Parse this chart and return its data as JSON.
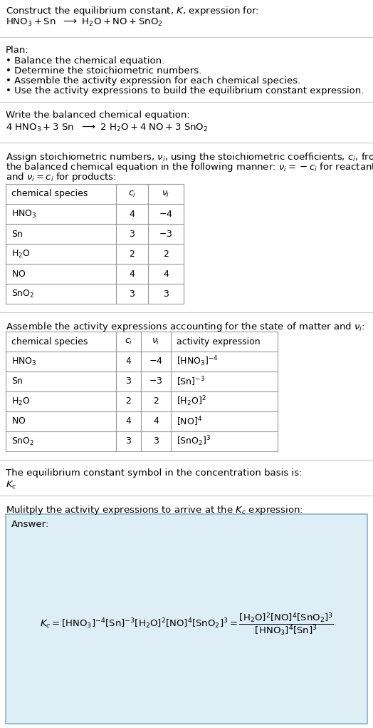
{
  "title_line1": "Construct the equilibrium constant, $K$, expression for:",
  "title_line2": "$\\mathrm{HNO_3 + Sn\\ \\ \\longrightarrow\\ H_2O + NO + SnO_2}$",
  "plan_header": "Plan:",
  "plan_items": [
    "• Balance the chemical equation.",
    "• Determine the stoichiometric numbers.",
    "• Assemble the activity expression for each chemical species.",
    "• Use the activity expressions to build the equilibrium constant expression."
  ],
  "balanced_header": "Write the balanced chemical equation:",
  "balanced_eq": "$4\\ \\mathrm{HNO_3 + 3\\ Sn\\ \\ \\longrightarrow\\ 2\\ H_2O + 4\\ NO + 3\\ SnO_2}$",
  "stoich_text": [
    "Assign stoichiometric numbers, $\\nu_i$, using the stoichiometric coefficients, $c_i$, from",
    "the balanced chemical equation in the following manner: $\\nu_i = -c_i$ for reactants",
    "and $\\nu_i = c_i$ for products:"
  ],
  "table1_cols": [
    "chemical species",
    "$c_i$",
    "$\\nu_i$"
  ],
  "table1_rows": [
    [
      "$\\mathrm{HNO_3}$",
      "4",
      "$-4$"
    ],
    [
      "$\\mathrm{Sn}$",
      "3",
      "$-3$"
    ],
    [
      "$\\mathrm{H_2O}$",
      "2",
      "2"
    ],
    [
      "$\\mathrm{NO}$",
      "4",
      "4"
    ],
    [
      "$\\mathrm{SnO_2}$",
      "3",
      "3"
    ]
  ],
  "activity_header": "Assemble the activity expressions accounting for the state of matter and $\\nu_i$:",
  "table2_cols": [
    "chemical species",
    "$c_i$",
    "$\\nu_i$",
    "activity expression"
  ],
  "table2_rows": [
    [
      "$\\mathrm{HNO_3}$",
      "4",
      "$-4$",
      "$[\\mathrm{HNO_3}]^{-4}$"
    ],
    [
      "$\\mathrm{Sn}$",
      "3",
      "$-3$",
      "$[\\mathrm{Sn}]^{-3}$"
    ],
    [
      "$\\mathrm{H_2O}$",
      "2",
      "2",
      "$[\\mathrm{H_2O}]^{2}$"
    ],
    [
      "$\\mathrm{NO}$",
      "4",
      "4",
      "$[\\mathrm{NO}]^{4}$"
    ],
    [
      "$\\mathrm{SnO_2}$",
      "3",
      "3",
      "$[\\mathrm{SnO_2}]^{3}$"
    ]
  ],
  "kc_header": "The equilibrium constant symbol in the concentration basis is:",
  "kc_symbol": "$K_c$",
  "multiply_header": "Mulitply the activity expressions to arrive at the $K_c$ expression:",
  "answer_label": "Answer:",
  "bg_color": "#ffffff",
  "text_color": "#000000",
  "table_border_color": "#999999",
  "answer_box_facecolor": "#ddeef6",
  "answer_box_edgecolor": "#8ab4c8",
  "divider_color": "#cccccc",
  "font_size": 9.5,
  "font_size_table": 9.0
}
